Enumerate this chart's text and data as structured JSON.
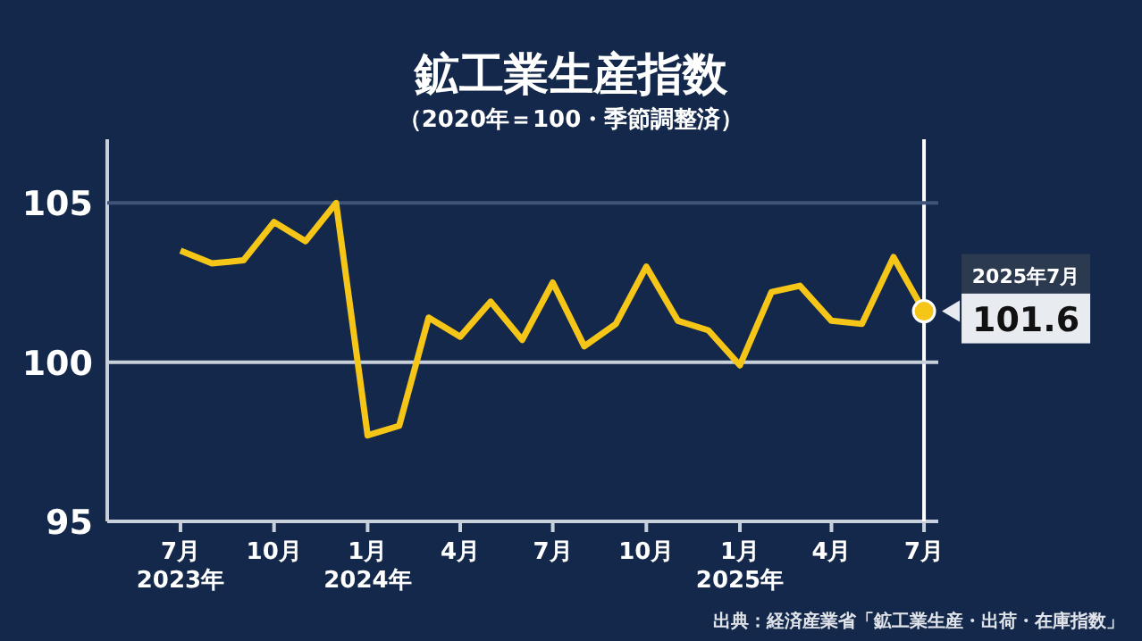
{
  "chart_data": {
    "type": "line",
    "title": "鉱工業生産指数",
    "subtitle": "（2020年＝100・季節調整済）",
    "x": [
      "2023-07",
      "2023-08",
      "2023-09",
      "2023-10",
      "2023-11",
      "2023-12",
      "2024-01",
      "2024-02",
      "2024-03",
      "2024-04",
      "2024-05",
      "2024-06",
      "2024-07",
      "2024-08",
      "2024-09",
      "2024-10",
      "2024-11",
      "2024-12",
      "2025-01",
      "2025-02",
      "2025-03",
      "2025-04",
      "2025-05",
      "2025-06",
      "2025-07"
    ],
    "series": [
      {
        "color": "#f5c518",
        "values": [
          103.5,
          103.1,
          103.2,
          104.4,
          103.8,
          105.0,
          97.7,
          98.0,
          101.4,
          100.8,
          101.9,
          100.7,
          102.5,
          100.5,
          101.2,
          103.0,
          101.3,
          101.0,
          99.9,
          102.2,
          102.4,
          101.3,
          101.2,
          103.3,
          101.6
        ]
      },
      {
        "type": "scatter",
        "color": "#f5c518",
        "marker": "circle",
        "x": [
          "2025-07"
        ],
        "values": [
          101.6
        ],
        "value_labels": [
          "101.6"
        ]
      }
    ],
    "xlim": [
      "2023-04-20",
      "2025-07-15"
    ],
    "xticks": [
      {
        "value": "2023-07",
        "label": "7月\n2023年"
      },
      {
        "value": "2023-10",
        "label": "10月"
      },
      {
        "value": "2024-01",
        "label": "1月\n2024年"
      },
      {
        "value": "2024-04",
        "label": "4月"
      },
      {
        "value": "2024-07",
        "label": "7月"
      },
      {
        "value": "2024-10",
        "label": "10月"
      },
      {
        "value": "2025-01",
        "label": "1月\n2025年"
      },
      {
        "value": "2025-04",
        "label": "4月"
      },
      {
        "value": "2025-07",
        "label": "7月"
      }
    ],
    "ylim": [
      95,
      107
    ],
    "yticks": [
      95,
      100,
      105
    ],
    "ref_lines": [
      {
        "axis": "x",
        "value": "2025-07",
        "color": "#ffffff"
      },
      {
        "axis": "y",
        "value": 100,
        "color": "#c8d0dc"
      },
      {
        "axis": "y",
        "value": 105,
        "color": "#3e5478"
      }
    ],
    "annotations": [
      {
        "text": "2025年7月",
        "x": "2025-07",
        "y": 101.6
      },
      "出典：経済産業省「鉱工業生産・出荷・在庫指数」"
    ]
  }
}
